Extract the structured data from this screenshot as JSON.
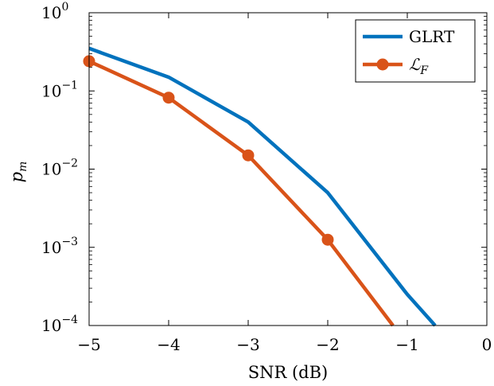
{
  "chart_data": {
    "type": "line",
    "xlabel": "SNR (dB)",
    "ylabel": "p_m",
    "ylabel_display": {
      "base": "p",
      "sub": "m"
    },
    "xlim": [
      -5,
      0
    ],
    "ylim": [
      0.0001,
      1
    ],
    "yscale": "log",
    "xticks": [
      -5,
      -4,
      -3,
      -2,
      -1,
      0
    ],
    "xtick_labels": [
      "−5",
      "−4",
      "−3",
      "−2",
      "−1",
      "0"
    ],
    "yticks": [
      {
        "value": 1,
        "base": "10",
        "exp": "0"
      },
      {
        "value": 0.1,
        "base": "10",
        "exp": "−1"
      },
      {
        "value": 0.01,
        "base": "10",
        "exp": "−2"
      },
      {
        "value": 0.001,
        "base": "10",
        "exp": "−3"
      },
      {
        "value": 0.0001,
        "base": "10",
        "exp": "−4"
      }
    ],
    "grid": false,
    "legend_position": "top-right",
    "series": [
      {
        "name": "GLRT",
        "color": "#0072BD",
        "marker": "none",
        "x": [
          -5,
          -4,
          -3,
          -2,
          -1,
          -0.65
        ],
        "y": [
          0.35,
          0.15,
          0.04,
          0.005,
          0.00025,
          0.0001
        ]
      },
      {
        "name": "ℒ",
        "name_sub": "F",
        "color": "#D95319",
        "marker": "circle",
        "x": [
          -5,
          -4,
          -3,
          -2,
          -1.18
        ],
        "y": [
          0.24,
          0.082,
          0.015,
          0.00125,
          0.0001
        ],
        "marker_points": [
          0,
          1,
          2,
          3
        ]
      }
    ]
  }
}
